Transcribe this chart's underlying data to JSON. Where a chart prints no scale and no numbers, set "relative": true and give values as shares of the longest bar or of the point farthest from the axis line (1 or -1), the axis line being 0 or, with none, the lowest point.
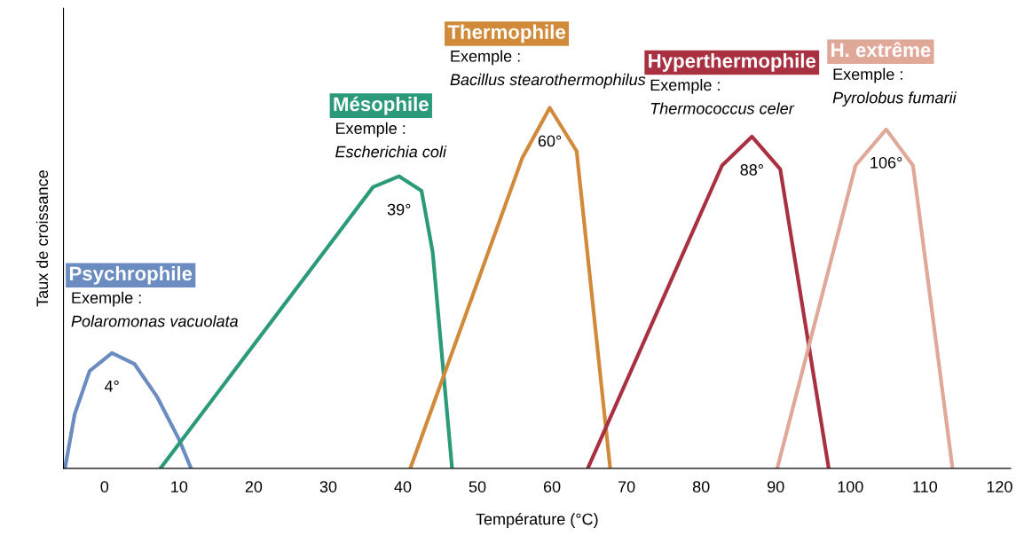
{
  "chart_data": {
    "type": "line",
    "relative": true,
    "xlabel": "Température (°C)",
    "ylabel": "Taux de croissance",
    "xlim": [
      -5.5,
      121.5
    ],
    "xticks": [
      0,
      10,
      20,
      30,
      40,
      50,
      60,
      70,
      80,
      90,
      100,
      110,
      120
    ],
    "grid": false,
    "marker": "none",
    "line_style": "solid",
    "series": [
      {
        "name": "Psychrophile",
        "color": "#6a8cc0",
        "x": [
          -5.3,
          -4,
          -2,
          1,
          4,
          7,
          10,
          11.6
        ],
        "values": [
          0,
          0.15,
          0.27,
          0.32,
          0.29,
          0.2,
          0.08,
          0
        ]
      },
      {
        "name": "Mésophile",
        "color": "#2a9a7a",
        "x": [
          7.5,
          36,
          39.5,
          42.5,
          44,
          46.6
        ],
        "values": [
          0,
          0.78,
          0.81,
          0.77,
          0.6,
          0
        ]
      },
      {
        "name": "Thermophile",
        "color": "#d08a3a",
        "x": [
          41,
          56,
          59.7,
          63.3,
          67.8
        ],
        "values": [
          0,
          0.86,
          1,
          0.88,
          0
        ]
      },
      {
        "name": "Hyperthermophile",
        "color": "#a83040",
        "x": [
          64.8,
          82.8,
          86.8,
          90.6,
          97.1
        ],
        "values": [
          0,
          0.84,
          0.92,
          0.83,
          0
        ]
      },
      {
        "name": "H. extrême",
        "color": "#e0a898",
        "x": [
          90.2,
          100.7,
          104.8,
          108.4,
          113.7
        ],
        "values": [
          0,
          0.84,
          0.94,
          0.84,
          0
        ]
      }
    ],
    "annotations": [
      "Exemple :\nPolaromonas vacuolata",
      "Exemple :\nEscherichia coli",
      "Exemple :\nBacillus stearothermophilus",
      "Exemple :\nThermococcus celer",
      "Exemple :\nPyrolobus fumarii",
      {
        "text": "4°",
        "x": 1,
        "y": 0.32
      },
      {
        "text": "39°",
        "x": 39.5,
        "y": 0.81
      },
      {
        "text": "60°",
        "x": 59.7,
        "y": 1
      },
      {
        "text": "88°",
        "x": 86.8,
        "y": 0.92
      },
      {
        "text": "106°",
        "x": 104.8,
        "y": 0.94
      }
    ]
  }
}
